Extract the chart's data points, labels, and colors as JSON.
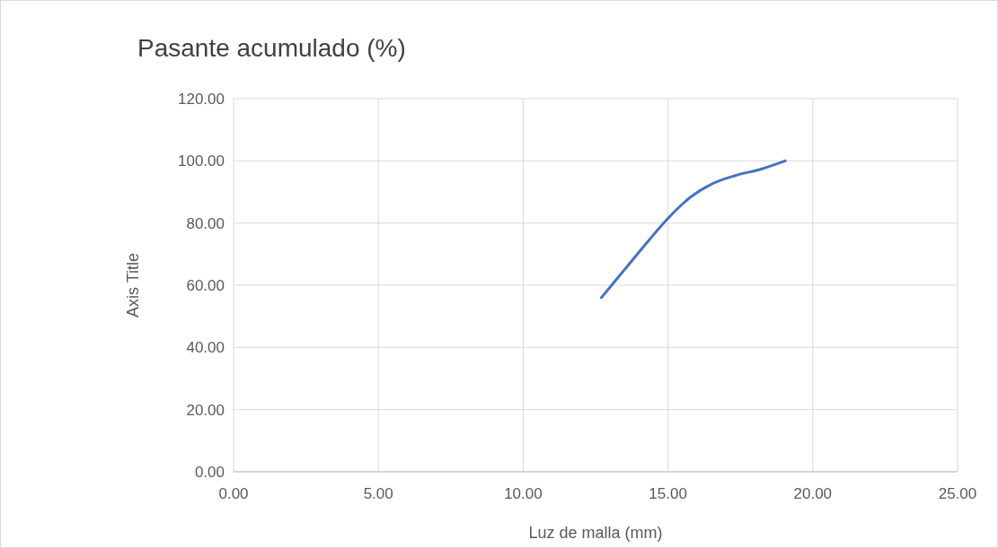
{
  "chart_data": {
    "type": "line",
    "title": "Pasante acumulado (%)",
    "xlabel": "Luz de malla (mm)",
    "ylabel": "Axis Title",
    "x": [
      12.7,
      13.5,
      14.3,
      15,
      15.8,
      16.5,
      17.3,
      18.2,
      19.05
    ],
    "series": [
      {
        "color": "#4472c4",
        "values": [
          56,
          65,
          74,
          81.5,
          88.5,
          92.5,
          95.2,
          97.3,
          100
        ]
      }
    ],
    "xlim": [
      0,
      25
    ],
    "xticks": [
      {
        "value": 0,
        "label": "0.00"
      },
      {
        "value": 5,
        "label": "5.00"
      },
      {
        "value": 10,
        "label": "10.00"
      },
      {
        "value": 15,
        "label": "15.00"
      },
      {
        "value": 20,
        "label": "20.00"
      },
      {
        "value": 25,
        "label": "25.00"
      }
    ],
    "ylim": [
      0,
      120
    ],
    "yticks": [
      {
        "value": 0,
        "label": "0.00"
      },
      {
        "value": 20,
        "label": "20.00"
      },
      {
        "value": 40,
        "label": "40.00"
      },
      {
        "value": 60,
        "label": "60.00"
      },
      {
        "value": 80,
        "label": "80.00"
      },
      {
        "value": 100,
        "label": "100.00"
      },
      {
        "value": 120,
        "label": "120.00"
      }
    ],
    "grid": true,
    "marker": "none",
    "line_style": "solid"
  }
}
